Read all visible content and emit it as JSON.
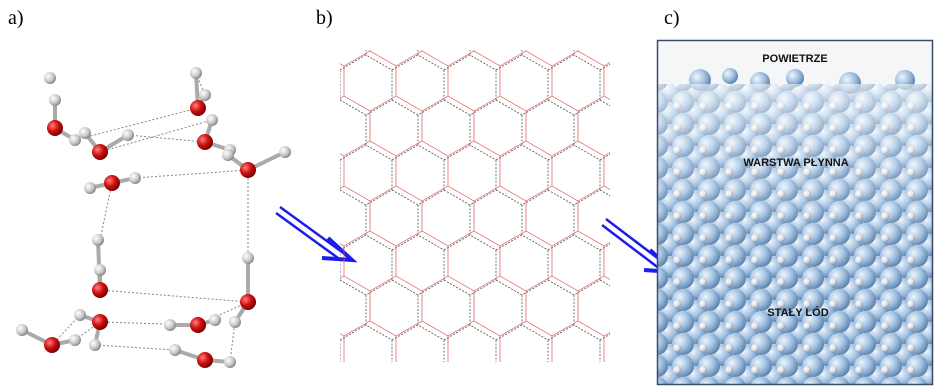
{
  "panels": [
    {
      "label": "a)"
    },
    {
      "label": "b)"
    },
    {
      "label": "c)",
      "labels": [
        "POWIETRZE",
        "WARSTWA PŁYNNA",
        "STAŁY LÓD"
      ]
    }
  ]
}
